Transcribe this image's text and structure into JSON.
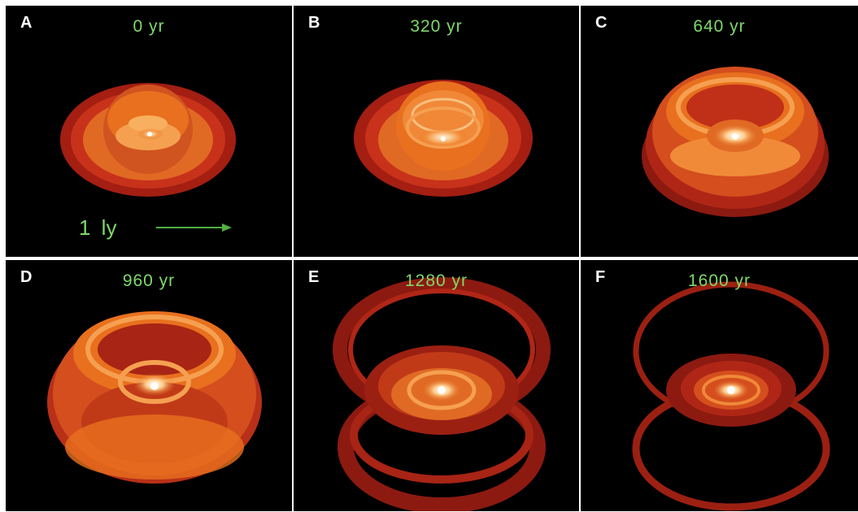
{
  "panels": [
    {
      "letter": "A",
      "time": "0  yr"
    },
    {
      "letter": "B",
      "time": "320  yr"
    },
    {
      "letter": "C",
      "time": "640  yr"
    },
    {
      "letter": "D",
      "time": "960  yr"
    },
    {
      "letter": "E",
      "time": "1280  yr"
    },
    {
      "letter": "F",
      "time": "1600  yr"
    }
  ],
  "scale_bar": {
    "label": "1  ly"
  },
  "colors": {
    "background": "#000000",
    "label_green": "#7fd96a",
    "dark_red": "#8c1a10",
    "red": "#c8321a",
    "orange": "#e8701e",
    "light_orange": "#f5a050",
    "core": "#ffe8c0"
  }
}
